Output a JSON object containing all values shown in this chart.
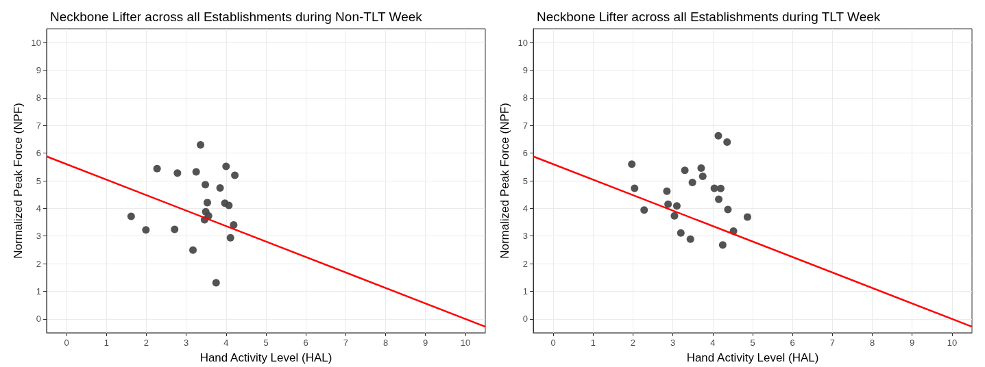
{
  "chart_data": [
    {
      "type": "scatter",
      "title": "Neckbone Lifter across all Establishments during Non-TLT Week",
      "xlabel": "Hand Activity Level (HAL)",
      "ylabel": "Normalized Peak Force (NPF)",
      "xlim": [
        -0.5,
        10.5
      ],
      "ylim": [
        -0.5,
        10.5
      ],
      "xticks": [
        0,
        1,
        2,
        3,
        4,
        5,
        6,
        7,
        8,
        9,
        10
      ],
      "yticks": [
        0,
        1,
        2,
        3,
        4,
        5,
        6,
        7,
        8,
        9,
        10
      ],
      "grid": true,
      "series": [
        {
          "marker": "circle",
          "color": "#4a4a4a",
          "x": [
            1.62,
            1.99,
            2.27,
            2.71,
            2.78,
            3.17,
            3.25,
            3.36,
            3.46,
            3.48,
            3.49,
            3.53,
            3.56,
            3.75,
            3.85,
            3.97,
            4.0,
            4.07,
            4.11,
            4.19,
            4.22
          ],
          "values": [
            3.71,
            3.22,
            5.44,
            3.24,
            5.28,
            2.49,
            5.32,
            6.3,
            3.59,
            4.86,
            3.88,
            4.21,
            3.73,
            1.31,
            4.74,
            4.19,
            5.52,
            4.11,
            2.94,
            3.4,
            5.2
          ]
        },
        {
          "type": "line",
          "color": "#ff0000",
          "line_style": "solid",
          "x": [
            -0.5,
            10.5
          ],
          "values": [
            5.88,
            -0.28
          ]
        }
      ]
    },
    {
      "type": "scatter",
      "title": "Neckbone Lifter across all Establishments during TLT Week",
      "xlabel": "Hand Activity Level (HAL)",
      "ylabel": "Normalized Peak Force (NPF)",
      "xlim": [
        -0.5,
        10.5
      ],
      "ylim": [
        -0.5,
        10.5
      ],
      "xticks": [
        0,
        1,
        2,
        3,
        4,
        5,
        6,
        7,
        8,
        9,
        10
      ],
      "yticks": [
        0,
        1,
        2,
        3,
        4,
        5,
        6,
        7,
        8,
        9,
        10
      ],
      "grid": true,
      "series": [
        {
          "marker": "circle",
          "color": "#4a4a4a",
          "x": [
            1.97,
            2.04,
            2.28,
            2.85,
            2.88,
            3.04,
            3.1,
            3.2,
            3.3,
            3.44,
            3.49,
            3.71,
            3.75,
            4.04,
            4.14,
            4.15,
            4.2,
            4.25,
            4.36,
            4.38,
            4.52,
            4.87
          ],
          "values": [
            5.6,
            4.73,
            3.94,
            4.62,
            4.15,
            3.73,
            4.09,
            3.11,
            5.38,
            2.89,
            4.94,
            5.46,
            5.16,
            4.73,
            6.63,
            4.33,
            4.72,
            2.68,
            6.4,
            3.96,
            3.18,
            3.69
          ]
        },
        {
          "type": "line",
          "color": "#ff0000",
          "line_style": "solid",
          "x": [
            -0.5,
            10.5
          ],
          "values": [
            5.88,
            -0.28
          ]
        }
      ]
    }
  ]
}
